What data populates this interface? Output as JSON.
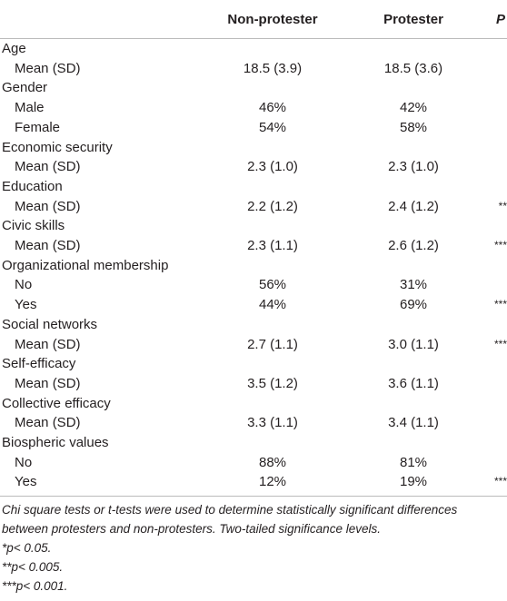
{
  "table": {
    "columns": [
      "Non-protester",
      "Protester",
      "P"
    ],
    "groups": [
      {
        "label": "Age",
        "rows": [
          [
            "Mean (SD)",
            "18.5 (3.9)",
            "18.5 (3.6)",
            null
          ]
        ]
      },
      {
        "label": "Gender",
        "rows": [
          [
            "Male",
            "46%",
            "42%",
            null
          ],
          [
            "Female",
            "54%",
            "58%",
            null
          ]
        ]
      },
      {
        "label": "Economic security",
        "rows": [
          [
            "Mean (SD)",
            "2.3 (1.0)",
            "2.3 (1.0)",
            null
          ]
        ]
      },
      {
        "label": "Education",
        "rows": [
          [
            "Mean (SD)",
            "2.2 (1.2)",
            "2.4 (1.2)",
            "**"
          ]
        ]
      },
      {
        "label": "Civic skills",
        "rows": [
          [
            "Mean (SD)",
            "2.3 (1.1)",
            "2.6 (1.2)",
            "***"
          ]
        ]
      },
      {
        "label": "Organizational membership",
        "rows": [
          [
            "No",
            "56%",
            "31%",
            null
          ],
          [
            "Yes",
            "44%",
            "69%",
            "***"
          ]
        ]
      },
      {
        "label": "Social networks",
        "rows": [
          [
            "Mean (SD)",
            "2.7 (1.1)",
            "3.0 (1.1)",
            "***"
          ]
        ]
      },
      {
        "label": "Self-efficacy",
        "rows": [
          [
            "Mean (SD)",
            "3.5 (1.2)",
            "3.6 (1.1)",
            null
          ]
        ]
      },
      {
        "label": "Collective efficacy",
        "rows": [
          [
            "Mean (SD)",
            "3.3 (1.1)",
            "3.4 (1.1)",
            null
          ]
        ]
      },
      {
        "label": "Biospheric values",
        "rows": [
          [
            "No",
            "88%",
            "81%",
            null
          ],
          [
            "Yes",
            "12%",
            "19%",
            "***"
          ]
        ]
      }
    ]
  },
  "footnotes": [
    "Chi square tests or t-tests were used to determine statistically significant differences between protesters and non-protesters. Two-tailed significance levels.",
    "*p< 0.05.",
    "**p< 0.005.",
    "***p< 0.001."
  ]
}
